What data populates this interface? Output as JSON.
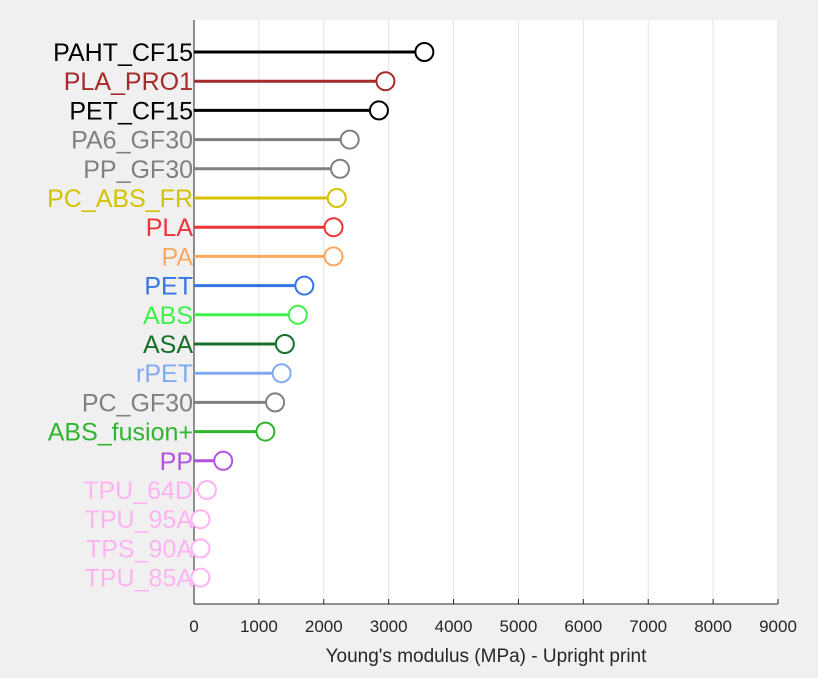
{
  "chart_data": {
    "type": "lollipop",
    "orientation": "horizontal",
    "title": "",
    "xlabel": "Young's modulus (MPa) - Upright print",
    "ylabel": "",
    "xlim": [
      0,
      9000
    ],
    "xticks": [
      "0",
      "1000",
      "2000",
      "3000",
      "4000",
      "5000",
      "6000",
      "7000",
      "8000",
      "9000"
    ],
    "grid": "vertical",
    "series": [
      {
        "category": "PAHT_CF15",
        "value": 3550,
        "color": "#000000"
      },
      {
        "category": "PLA_PRO1",
        "value": 2950,
        "color": "#a52a2a"
      },
      {
        "category": "PET_CF15",
        "value": 2850,
        "color": "#000000"
      },
      {
        "category": "PA6_GF30",
        "value": 2400,
        "color": "#808080"
      },
      {
        "category": "PP_GF30",
        "value": 2250,
        "color": "#808080"
      },
      {
        "category": "PC_ABS_FR",
        "value": 2200,
        "color": "#d4c200"
      },
      {
        "category": "PLA",
        "value": 2150,
        "color": "#ee3338"
      },
      {
        "category": "PA",
        "value": 2150,
        "color": "#ffa75e"
      },
      {
        "category": "PET",
        "value": 1700,
        "color": "#3575e3"
      },
      {
        "category": "ABS",
        "value": 1600,
        "color": "#3ef048"
      },
      {
        "category": "ASA",
        "value": 1400,
        "color": "#17702a"
      },
      {
        "category": "rPET",
        "value": 1350,
        "color": "#82aaf2"
      },
      {
        "category": "PC_GF30",
        "value": 1250,
        "color": "#808080"
      },
      {
        "category": "ABS_fusion+",
        "value": 1100,
        "color": "#2fb52f"
      },
      {
        "category": "PP",
        "value": 450,
        "color": "#b452e0"
      },
      {
        "category": "TPU_64D",
        "value": 200,
        "color": "#ffb3f2"
      },
      {
        "category": "TPU_95A",
        "value": 100,
        "color": "#ffb3f2"
      },
      {
        "category": "TPS_90A",
        "value": 100,
        "color": "#ffb3f2"
      },
      {
        "category": "TPU_85A",
        "value": 100,
        "color": "#ffb3f2"
      }
    ]
  }
}
